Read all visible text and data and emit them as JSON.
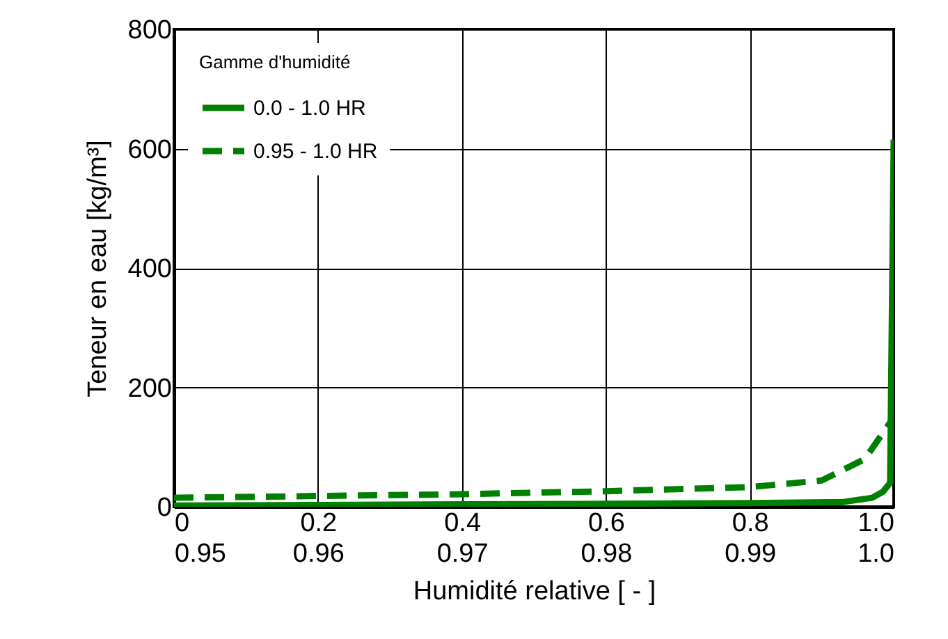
{
  "chart_data": {
    "type": "line",
    "xlabel": "Humidité relative [ - ]",
    "ylabel": "Teneur en eau [kg/m³]",
    "legend_title": "Gamme d'humidité",
    "xlim": [
      0,
      1
    ],
    "xticks": [
      0,
      0.2,
      0.4,
      0.6,
      0.8,
      {
        "value": 1,
        "label": "1.0"
      }
    ],
    "x2lim": [
      0.95,
      1
    ],
    "x2ticks": [
      0.95,
      0.96,
      0.97,
      0.98,
      0.99,
      {
        "value": 1,
        "label": "1.0"
      }
    ],
    "ylim": [
      0,
      800
    ],
    "yticks": [
      0,
      200,
      400,
      600,
      800
    ],
    "grid": true,
    "legend": "top left",
    "marker": "none",
    "series": [
      {
        "name": "0.0  -  1.0 HR",
        "color": "#008000",
        "line_style": "solid",
        "x": [
          0,
          0.2,
          0.4,
          0.6,
          0.8,
          0.93,
          0.97,
          0.985,
          0.995,
          1.0
        ],
        "values": [
          2,
          3,
          4,
          5,
          6,
          8,
          15,
          25,
          40,
          615
        ]
      },
      {
        "name": "0.95 - 1.0 HR",
        "color": "#008000",
        "line_style": "dashed",
        "axis": "x2",
        "x": [
          0.95,
          0.96,
          0.97,
          0.98,
          0.99,
          0.995,
          0.998,
          1.0
        ],
        "values": [
          15,
          18,
          21,
          26,
          33,
          44,
          80,
          150
        ]
      }
    ]
  }
}
